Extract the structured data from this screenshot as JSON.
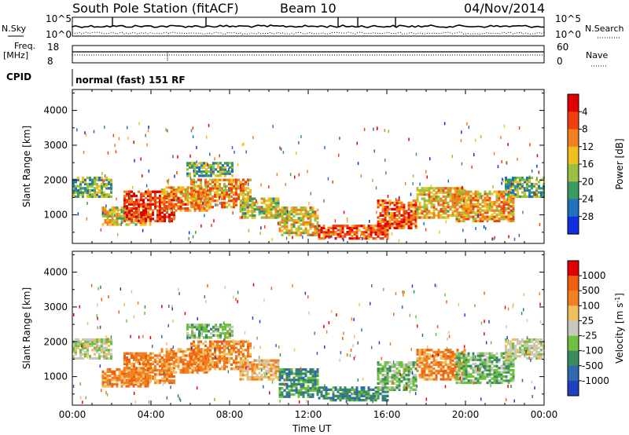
{
  "header": {
    "station": "South Pole Station (fitACF)",
    "beam": "Beam 10",
    "date": "04/Nov/2014"
  },
  "top_panels": {
    "nsky_label": "N.Sky",
    "nsearch_label": "N.Search",
    "nsky_ticks": [
      "10^5",
      "10^0"
    ],
    "nsearch_ticks": [
      "10^5",
      "10^0"
    ],
    "freq_label_top": "Freq.",
    "freq_label_bottom": "[MHz]",
    "freq_ticks": [
      "18",
      "8"
    ],
    "nave_label": "Nave",
    "nave_ticks": [
      "60",
      "0"
    ],
    "cpid_label": "CPID",
    "cpid_value": "normal (fast) 151 RF"
  },
  "chart_data": [
    {
      "type": "heatmap",
      "name": "power-panel",
      "ylabel": "Slant Range [km]",
      "ylim": [
        180,
        4600
      ],
      "xlim_hours": [
        0,
        24
      ],
      "y_ticks": [
        "1000",
        "2000",
        "3000",
        "4000"
      ],
      "x_ticks": [
        "00:00",
        "04:00",
        "08:00",
        "12:00",
        "16:00",
        "20:00",
        "00:00"
      ],
      "colorbar": {
        "label": "Power [dB]",
        "ticks": [
          "4",
          "8",
          "12",
          "16",
          "20",
          "24",
          "28"
        ],
        "colors": [
          "#1030e0",
          "#2070c0",
          "#3a9a60",
          "#9ac040",
          "#f0c020",
          "#f08020",
          "#f04010",
          "#e00000"
        ]
      }
    },
    {
      "type": "heatmap",
      "name": "velocity-panel",
      "ylabel": "Slant Range [km]",
      "ylim": [
        180,
        4600
      ],
      "xlim_hours": [
        0,
        24
      ],
      "y_ticks": [
        "1000",
        "2000",
        "3000",
        "4000"
      ],
      "x_ticks": [
        "00:00",
        "04:00",
        "08:00",
        "12:00",
        "16:00",
        "20:00",
        "00:00"
      ],
      "xlabel": "Time UT",
      "colorbar": {
        "label": "Velocity [m s",
        "label_sup": "-1",
        "label_end": "]",
        "ticks": [
          "1000",
          "500",
          "100",
          "25",
          "-25",
          "-100",
          "-500",
          "-1000"
        ],
        "colors": [
          "#2040c0",
          "#2f6ab0",
          "#3a8a60",
          "#70c040",
          "#c8c8c0",
          "#f0c060",
          "#f08020",
          "#f06010",
          "#e00000"
        ]
      }
    }
  ]
}
